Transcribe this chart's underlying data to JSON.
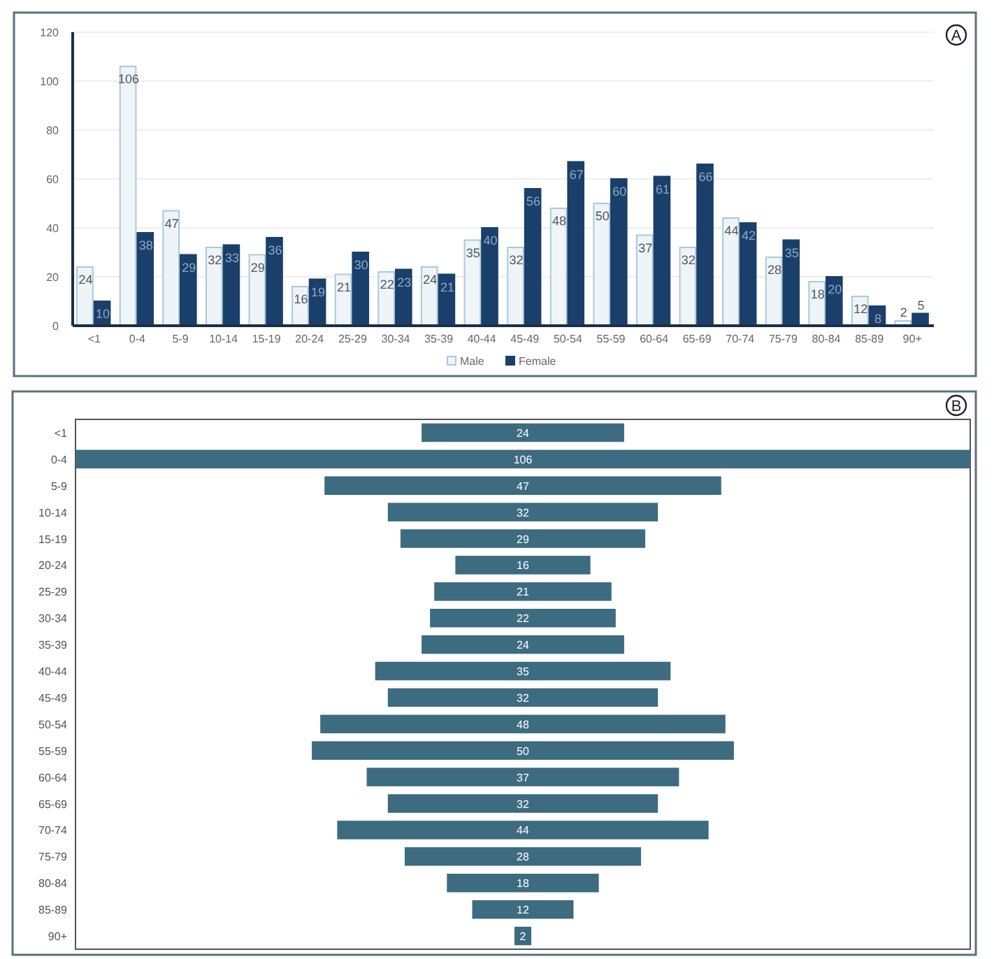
{
  "chart_data": [
    {
      "type": "bar",
      "categories": [
        "<1",
        "0-4",
        "5-9",
        "10-14",
        "15-19",
        "20-24",
        "25-29",
        "30-34",
        "35-39",
        "40-44",
        "45-49",
        "50-54",
        "55-59",
        "60-64",
        "65-69",
        "70-74",
        "75-79",
        "80-84",
        "85-89",
        "90+"
      ],
      "series": [
        {
          "name": "Male",
          "color": "#eef4f8",
          "values": [
            24,
            106,
            47,
            32,
            29,
            16,
            21,
            22,
            24,
            35,
            32,
            48,
            50,
            37,
            32,
            44,
            28,
            18,
            12,
            2
          ]
        },
        {
          "name": "Female",
          "color": "#1b3f6b",
          "values": [
            10,
            38,
            29,
            33,
            36,
            19,
            30,
            23,
            21,
            40,
            56,
            67,
            60,
            61,
            66,
            42,
            35,
            20,
            8,
            5
          ]
        }
      ],
      "ylim": [
        0,
        120
      ],
      "yticks": [
        0,
        20,
        40,
        60,
        80,
        100,
        120
      ],
      "grid": "y",
      "legend": "bottom",
      "data_labels": true,
      "annotations": [
        "A"
      ]
    },
    {
      "type": "other",
      "categories": [
        "<1",
        "0-4",
        "5-9",
        "10-14",
        "15-19",
        "20-24",
        "25-29",
        "30-34",
        "35-39",
        "40-44",
        "45-49",
        "50-54",
        "55-59",
        "60-64",
        "65-69",
        "70-74",
        "75-79",
        "80-84",
        "85-89",
        "90+"
      ],
      "values": [
        24,
        106,
        47,
        32,
        29,
        16,
        21,
        22,
        24,
        35,
        32,
        48,
        50,
        37,
        32,
        44,
        28,
        18,
        12,
        2
      ],
      "color": "#3d6b80",
      "data_labels": true,
      "annotations": [
        "B"
      ]
    }
  ]
}
